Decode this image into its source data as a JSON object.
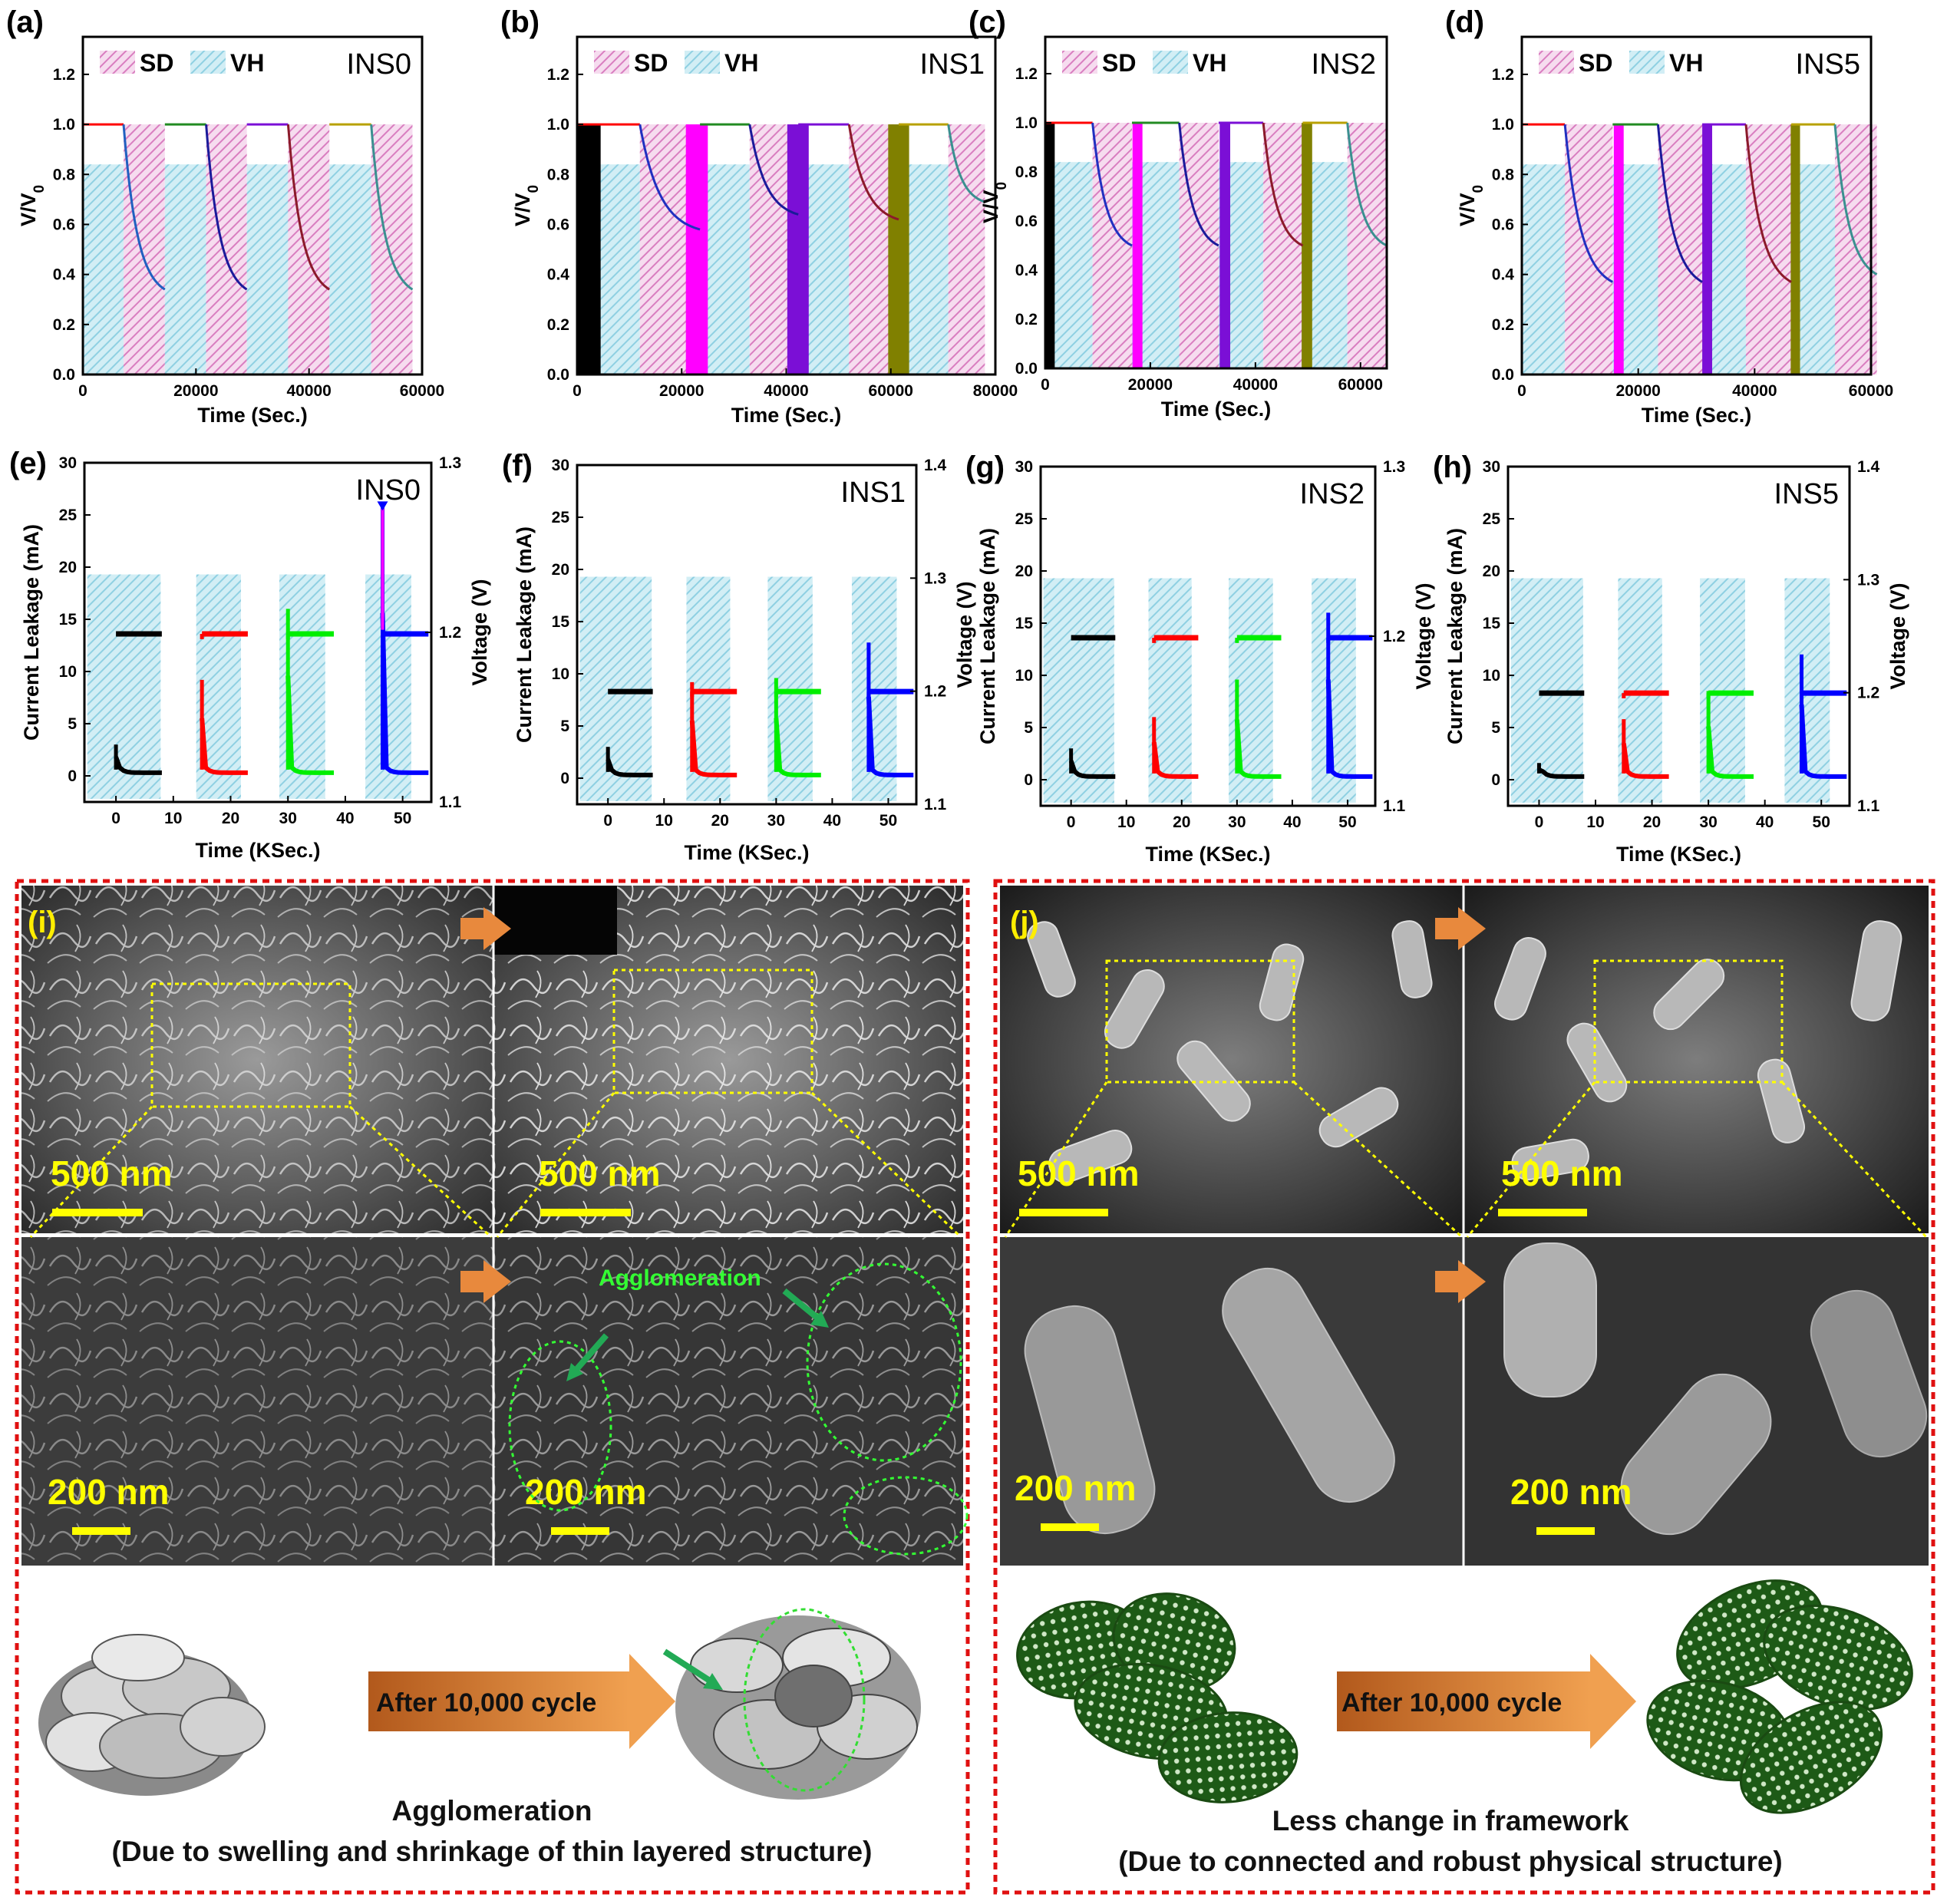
{
  "colors": {
    "sd_fill": "#e3a6d4",
    "vh_fill": "#a8dce9",
    "green_ring": "#22dd22",
    "scale_yellow": "#ffff00",
    "frame_red": "#e01010",
    "arrow_orange": "#e08a3c"
  },
  "panels_top": [
    {
      "letter": "(a)",
      "name": "INS0",
      "xmax": 60000,
      "xticks": [
        "0",
        "20000",
        "40000",
        "60000"
      ],
      "colors": [
        "#ff0000",
        "#228b22",
        "#7b0fd6",
        "#b8a100",
        "#2060c0",
        "#1a1a9a",
        "#8b1a2a",
        "#3a9090"
      ],
      "cycles": [
        {
          "c0": 0,
          "c1": 7200,
          "d1": 14500
        },
        {
          "c0": 14500,
          "c1": 21800,
          "d1": 29000
        },
        {
          "c0": 29000,
          "c1": 36300,
          "d1": 43600
        },
        {
          "c0": 43600,
          "c1": 51000,
          "d1": 58300
        }
      ],
      "dmin": [
        0.34,
        0.34,
        0.34,
        0.34
      ],
      "bars": []
    },
    {
      "letter": "(b)",
      "name": "INS1",
      "xmax": 80000,
      "xticks": [
        "0",
        "20000",
        "40000",
        "60000",
        "80000"
      ],
      "colors": [
        "#ff0000",
        "#228b22",
        "#7b0fd6",
        "#b8a100",
        "#2030c0",
        "#1a1a9a",
        "#8b1a2a",
        "#3a9090"
      ],
      "cycles": [
        {
          "c0": 0,
          "c1": 12000,
          "d1": 23500
        },
        {
          "c0": 23500,
          "c1": 33000,
          "d1": 42300
        },
        {
          "c0": 42300,
          "c1": 52000,
          "d1": 61500
        },
        {
          "c0": 61500,
          "c1": 71000,
          "d1": 78000
        }
      ],
      "dmin": [
        0.58,
        0.64,
        0.62,
        0.69
      ],
      "bars": [
        {
          "x0": 0,
          "x1": 4500,
          "color": "#000000"
        },
        {
          "x0": 20800,
          "x1": 25000,
          "color": "#ff00ff"
        },
        {
          "x0": 40200,
          "x1": 44300,
          "color": "#7b0fd6"
        },
        {
          "x0": 59500,
          "x1": 63500,
          "color": "#808000"
        }
      ]
    },
    {
      "letter": "(c)",
      "name": "INS2",
      "xmax": 65000,
      "xticks": [
        "0",
        "20000",
        "40000",
        "60000"
      ],
      "colors": [
        "#ff0000",
        "#228b22",
        "#7b0fd6",
        "#b8a100",
        "#2030c0",
        "#1a1a9a",
        "#8b1a2a",
        "#3a9090"
      ],
      "cycles": [
        {
          "c0": 0,
          "c1": 9000,
          "d1": 16500
        },
        {
          "c0": 16500,
          "c1": 25500,
          "d1": 33000
        },
        {
          "c0": 33000,
          "c1": 41500,
          "d1": 49000
        },
        {
          "c0": 49000,
          "c1": 57500,
          "d1": 65000
        }
      ],
      "dmin": [
        0.5,
        0.5,
        0.5,
        0.5
      ],
      "bars": [
        {
          "x0": 0,
          "x1": 1800,
          "color": "#000000"
        },
        {
          "x0": 16600,
          "x1": 18500,
          "color": "#ff00ff"
        },
        {
          "x0": 33200,
          "x1": 35200,
          "color": "#7b0fd6"
        },
        {
          "x0": 48800,
          "x1": 50800,
          "color": "#808000"
        }
      ]
    },
    {
      "letter": "(d)",
      "name": "INS5",
      "xmax": 60000,
      "xticks": [
        "0",
        "20000",
        "40000",
        "60000"
      ],
      "colors": [
        "#ff0000",
        "#228b22",
        "#7b0fd6",
        "#b8a100",
        "#2030c0",
        "#1a1a9a",
        "#8b1a2a",
        "#3a9090"
      ],
      "cycles": [
        {
          "c0": 0,
          "c1": 7400,
          "d1": 15600
        },
        {
          "c0": 15600,
          "c1": 23400,
          "d1": 31000
        },
        {
          "c0": 31000,
          "c1": 38500,
          "d1": 46300
        },
        {
          "c0": 46300,
          "c1": 53800,
          "d1": 61000
        }
      ],
      "dmin": [
        0.37,
        0.37,
        0.37,
        0.4
      ],
      "bars": [
        {
          "x0": 15800,
          "x1": 17500,
          "color": "#ff00ff"
        },
        {
          "x0": 31000,
          "x1": 32700,
          "color": "#7b0fd6"
        },
        {
          "x0": 46200,
          "x1": 47800,
          "color": "#808000"
        }
      ]
    }
  ],
  "legend_sd": "SD",
  "legend_vh": "VH",
  "top_ylabel": "V/V",
  "top_ylabel_sub": "0",
  "top_xlabel": "Time (Sec.)",
  "top_yticks": [
    "0.0",
    "0.2",
    "0.4",
    "0.6",
    "0.8",
    "1.0",
    "1.2"
  ],
  "panels_mid": [
    {
      "letter": "(e)",
      "name": "INS0",
      "vmax": 1.3,
      "vticks": [
        "1.1",
        "1.2",
        "1.3"
      ],
      "colors": [
        "#000000",
        "#ff0000",
        "#00ee00",
        "#0000ff"
      ],
      "plateau": 13.6,
      "spikes": [
        3,
        9.2,
        16,
        26
      ],
      "spike_marker_top": true
    },
    {
      "letter": "(f)",
      "name": "INS1",
      "vmax": 1.4,
      "vticks": [
        "1.1",
        "1.2",
        "1.3",
        "1.4"
      ],
      "colors": [
        "#000000",
        "#ff0000",
        "#00ee00",
        "#0000ff"
      ],
      "plateau": 8.3,
      "spikes": [
        3,
        9.2,
        9.6,
        13
      ],
      "spike_marker_top": false
    },
    {
      "letter": "(g)",
      "name": "INS2",
      "vmax": 1.3,
      "vticks": [
        "1.1",
        "1.2",
        "1.3"
      ],
      "colors": [
        "#000000",
        "#ff0000",
        "#00ee00",
        "#0000ff"
      ],
      "plateau": 13.6,
      "spikes": [
        3,
        6,
        9.6,
        16
      ],
      "spike_marker_top": false
    },
    {
      "letter": "(h)",
      "name": "INS5",
      "vmax": 1.4,
      "vticks": [
        "1.1",
        "1.2",
        "1.3",
        "1.4"
      ],
      "colors": [
        "#000000",
        "#ff0000",
        "#00ee00",
        "#0000ff"
      ],
      "plateau": 8.3,
      "spikes": [
        1.6,
        5.8,
        8.5,
        12
      ],
      "spike_marker_top": false
    }
  ],
  "mid_ylabel": "Current Leakage (mA)",
  "mid_y2label": "Voltage (V)",
  "mid_xlabel": "Time (KSec.)",
  "mid_yticks": [
    "0",
    "5",
    "10",
    "15",
    "20",
    "25",
    "30"
  ],
  "mid_xticks": [
    "0",
    "10",
    "20",
    "30",
    "40",
    "50"
  ],
  "sem_i": {
    "letter": "(i)",
    "scale_top": "500 nm",
    "scale_bottom": "200 nm",
    "agglo": "Agglomeration",
    "arrow_text": "After 10,000 cycle",
    "cap1": "Agglomeration",
    "cap2": "(Due to swelling and shrinkage of thin layered structure)"
  },
  "sem_j": {
    "letter": "(j)",
    "scale_top": "500 nm",
    "scale_bottom": "200 nm",
    "arrow_text": "After 10,000 cycle",
    "cap1": "Less change in framework",
    "cap2": "(Due to connected and robust physical structure)"
  }
}
